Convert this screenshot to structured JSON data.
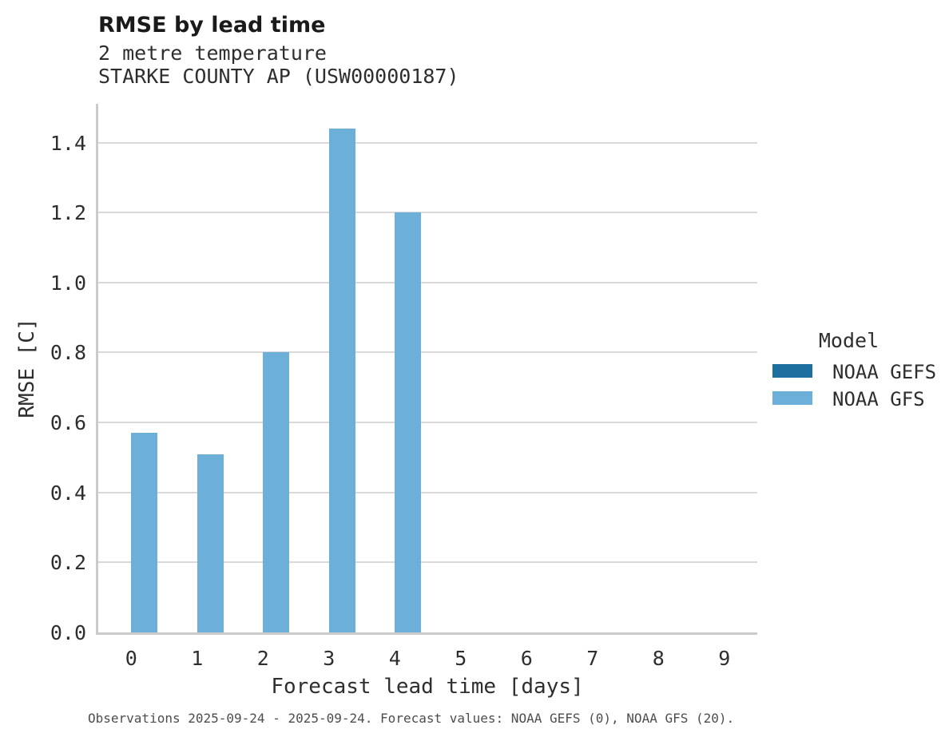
{
  "header": {
    "title": "RMSE by lead time",
    "subtitle_line1": "2 metre temperature",
    "subtitle_line2": "STARKE COUNTY AP (USW00000187)"
  },
  "legend": {
    "title": "Model",
    "items": [
      {
        "label": "NOAA GEFS",
        "color": "#1d6fa0"
      },
      {
        "label": "NOAA GFS",
        "color": "#6cb0d9"
      }
    ]
  },
  "footer": {
    "note": "Observations 2025-09-24 - 2025-09-24. Forecast values: NOAA GEFS (0), NOAA GFS (20)."
  },
  "colors": {
    "gridline": "#d9d9d9",
    "spine": "#cbcbcb",
    "noaa_gefs": "#1d6fa0",
    "noaa_gfs": "#6cb0d9"
  },
  "chart_data": {
    "type": "bar",
    "title": "RMSE by lead time",
    "subtitle": [
      "2 metre temperature",
      "STARKE COUNTY AP (USW00000187)"
    ],
    "xlabel": "Forecast lead time [days]",
    "ylabel": "RMSE [C]",
    "categories": [
      0,
      1,
      2,
      3,
      4,
      5,
      6,
      7,
      8,
      9
    ],
    "series": [
      {
        "name": "NOAA GEFS",
        "color": "#1d6fa0",
        "values": [
          null,
          null,
          null,
          null,
          null,
          null,
          null,
          null,
          null,
          null
        ]
      },
      {
        "name": "NOAA GFS",
        "color": "#6cb0d9",
        "values": [
          0.57,
          0.51,
          0.8,
          1.44,
          1.2,
          null,
          null,
          null,
          null,
          null
        ]
      }
    ],
    "ylim": [
      0,
      1.51
    ],
    "yticks": [
      0.0,
      0.2,
      0.4,
      0.6,
      0.8,
      1.0,
      1.2,
      1.4
    ],
    "grid": "horizontal",
    "legend_title": "Model",
    "legend_position": "right",
    "caption": "Observations 2025-09-24 - 2025-09-24. Forecast values: NOAA GEFS (0), NOAA GFS (20)."
  }
}
